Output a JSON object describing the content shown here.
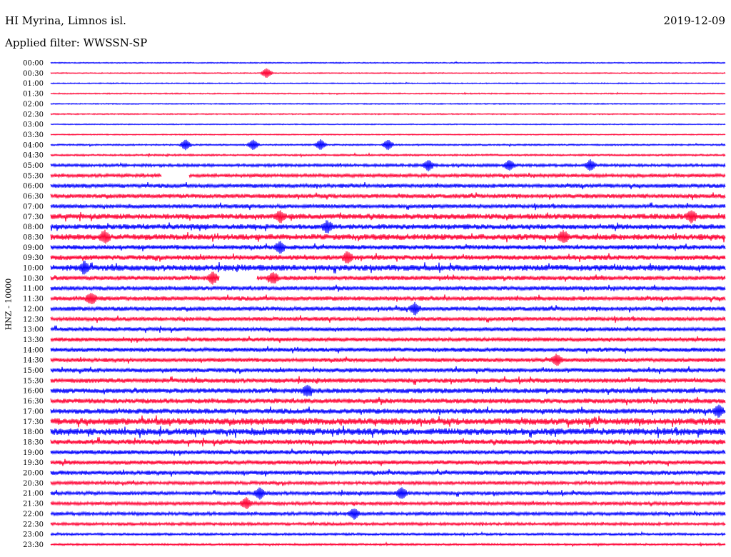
{
  "header": {
    "station": "HI Myrina, Limnos isl.",
    "date": "2019-12-09",
    "filter": "Applied filter: WWSSN-SP"
  },
  "chart_data": {
    "type": "line",
    "title": "HI Myrina, Limnos isl.",
    "ylabel": "HNZ - 10000",
    "colors": [
      "#0000ff",
      "#ff0033"
    ],
    "rows": [
      {
        "time": "00:00",
        "activity": 0.05
      },
      {
        "time": "00:30",
        "activity": 0.04,
        "events": [
          0.32
        ]
      },
      {
        "time": "01:00",
        "activity": 0.05
      },
      {
        "time": "01:30",
        "activity": 0.07
      },
      {
        "time": "02:00",
        "activity": 0.06
      },
      {
        "time": "02:30",
        "activity": 0.07
      },
      {
        "time": "03:00",
        "activity": 0.04
      },
      {
        "time": "03:30",
        "activity": 0.05
      },
      {
        "time": "04:00",
        "activity": 0.14,
        "events": [
          0.2,
          0.3,
          0.4,
          0.5
        ]
      },
      {
        "time": "04:30",
        "activity": 0.18
      },
      {
        "time": "05:00",
        "activity": 0.35,
        "events": [
          0.56,
          0.68,
          0.8
        ]
      },
      {
        "time": "05:30",
        "activity": 0.45,
        "gaps": [
          [
            0.165,
            0.205
          ]
        ]
      },
      {
        "time": "06:00",
        "activity": 0.55
      },
      {
        "time": "06:30",
        "activity": 0.6
      },
      {
        "time": "07:00",
        "activity": 0.55
      },
      {
        "time": "07:30",
        "activity": 0.8,
        "events": [
          0.34,
          0.95
        ]
      },
      {
        "time": "08:00",
        "activity": 0.75,
        "events": [
          0.41
        ]
      },
      {
        "time": "08:30",
        "activity": 0.85,
        "events": [
          0.08,
          0.76
        ]
      },
      {
        "time": "09:00",
        "activity": 0.65,
        "events": [
          0.34
        ]
      },
      {
        "time": "09:30",
        "activity": 0.7,
        "events": [
          0.44
        ]
      },
      {
        "time": "10:00",
        "activity": 0.9,
        "events": [
          0.05
        ]
      },
      {
        "time": "10:30",
        "activity": 0.6,
        "events": [
          0.24,
          0.33
        ],
        "gaps": [
          [
            0.25,
            0.305
          ]
        ]
      },
      {
        "time": "11:00",
        "activity": 0.6
      },
      {
        "time": "11:30",
        "activity": 0.6,
        "events": [
          0.06
        ]
      },
      {
        "time": "12:00",
        "activity": 0.6,
        "events": [
          0.54
        ]
      },
      {
        "time": "12:30",
        "activity": 0.55
      },
      {
        "time": "13:00",
        "activity": 0.55
      },
      {
        "time": "13:30",
        "activity": 0.55
      },
      {
        "time": "14:00",
        "activity": 0.6
      },
      {
        "time": "14:30",
        "activity": 0.55,
        "events": [
          0.75
        ]
      },
      {
        "time": "15:00",
        "activity": 0.6
      },
      {
        "time": "15:30",
        "activity": 0.65
      },
      {
        "time": "16:00",
        "activity": 0.7,
        "events": [
          0.38
        ]
      },
      {
        "time": "16:30",
        "activity": 0.7
      },
      {
        "time": "17:00",
        "activity": 0.75,
        "events": [
          0.99
        ]
      },
      {
        "time": "17:30",
        "activity": 1.0
      },
      {
        "time": "18:00",
        "activity": 1.0
      },
      {
        "time": "18:30",
        "activity": 0.75
      },
      {
        "time": "19:00",
        "activity": 0.6
      },
      {
        "time": "19:30",
        "activity": 0.6
      },
      {
        "time": "20:00",
        "activity": 0.6
      },
      {
        "time": "20:30",
        "activity": 0.45
      },
      {
        "time": "21:00",
        "activity": 0.5,
        "events": [
          0.31,
          0.52
        ]
      },
      {
        "time": "21:30",
        "activity": 0.45,
        "events": [
          0.29
        ]
      },
      {
        "time": "22:00",
        "activity": 0.45,
        "events": [
          0.45
        ]
      },
      {
        "time": "22:30",
        "activity": 0.35
      },
      {
        "time": "23:00",
        "activity": 0.25
      },
      {
        "time": "23:30",
        "activity": 0.2
      }
    ]
  }
}
